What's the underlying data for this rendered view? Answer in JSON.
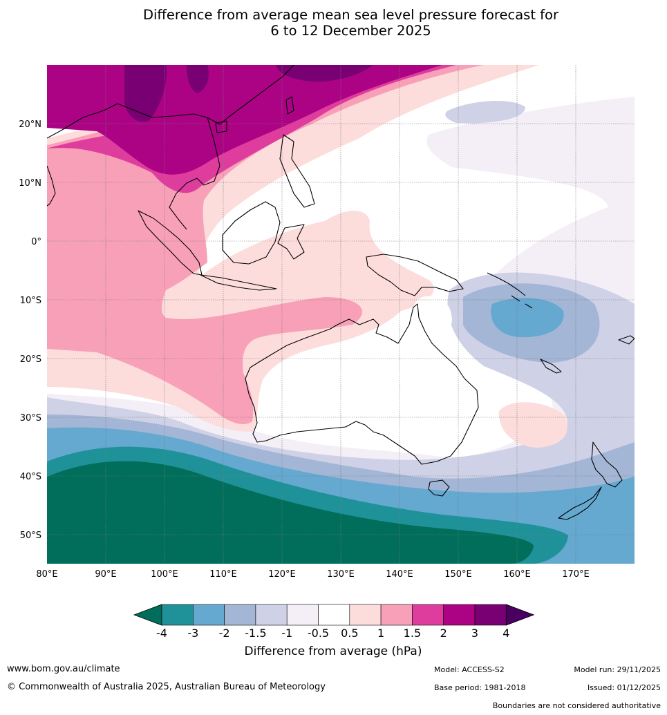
{
  "title": {
    "line1": "Difference from average mean sea level pressure forecast for",
    "line2": "6 to 12 December 2025"
  },
  "axes": {
    "lon_labels": [
      "80°E",
      "90°E",
      "100°E",
      "110°E",
      "120°E",
      "130°E",
      "140°E",
      "150°E",
      "160°E",
      "170°E"
    ],
    "lat_labels": [
      "20°N",
      "10°N",
      "0°",
      "10°S",
      "20°S",
      "30°S",
      "40°S",
      "50°S"
    ]
  },
  "colorbar": {
    "title": "Difference from average (hPa)",
    "ticks": [
      "-4",
      "-3",
      "-2",
      "-1.5",
      "-1",
      "-0.5",
      "0.5",
      "1",
      "1.5",
      "2",
      "3",
      "4"
    ],
    "colors": [
      "#006e5a",
      "#1f9299",
      "#65a8d0",
      "#a3b6d6",
      "#cfd1e6",
      "#f4eef6",
      "#ffffff",
      "#fddcdc",
      "#f8a0b8",
      "#df3d9e",
      "#ac0385",
      "#780073",
      "#4a0061"
    ]
  },
  "footer": {
    "website": "www.bom.gov.au/climate",
    "copyright": "© Commonwealth of Australia 2025, Australian Bureau of Meteorology",
    "model": "Model: ACCESS-S2",
    "base_period": "Base period: 1981-2018",
    "model_run": "Model run: 29/11/2025",
    "issued": "Issued: 01/12/2025",
    "disclaimer": "Boundaries are not considered authoritative"
  }
}
